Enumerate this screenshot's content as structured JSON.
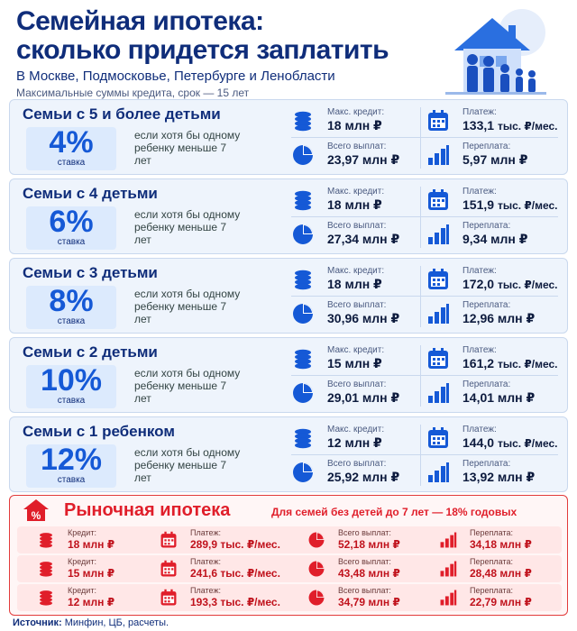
{
  "header": {
    "title_line1": "Семейная ипотека:",
    "title_line2": "сколько придется заплатить",
    "subtitle": "В Москве, Подмосковье, Петербурге и Ленобласти",
    "note": "Максимальные суммы кредита, срок — 15 лет"
  },
  "labels": {
    "rate": "ставка",
    "condition": "если хотя бы одному ребенку меньше 7 лет",
    "max_credit": "Макс. кредит:",
    "payment": "Платеж:",
    "total": "Всего выплат:",
    "overpay": "Переплата:"
  },
  "cards": [
    {
      "title": "Семьи с 5 и более детьми",
      "rate": "4%",
      "credit": "18 млн ₽",
      "payment": "133,1",
      "total": "23,97 млн ₽",
      "overpay": "5,97 млн ₽"
    },
    {
      "title": "Семьи с 4 детьми",
      "rate": "6%",
      "credit": "18 млн ₽",
      "payment": "151,9",
      "total": "27,34 млн ₽",
      "overpay": "9,34 млн ₽"
    },
    {
      "title": "Семьи с 3 детьми",
      "rate": "8%",
      "credit": "18 млн ₽",
      "payment": "172,0",
      "total": "30,96 млн ₽",
      "overpay": "12,96 млн ₽"
    },
    {
      "title": "Семьи с 2 детьми",
      "rate": "10%",
      "credit": "15 млн ₽",
      "payment": "161,2",
      "total": "29,01 млн ₽",
      "overpay": "14,01 млн ₽"
    },
    {
      "title": "Семьи с 1 ребенком",
      "rate": "12%",
      "credit": "12 млн ₽",
      "payment": "144,0",
      "total": "25,92 млн ₽",
      "overpay": "13,92 млн ₽"
    }
  ],
  "payment_unit": "тыс. ₽/мес.",
  "market": {
    "title": "Рыночная ипотека",
    "note": "Для семей без детей до 7 лет — 18% годовых",
    "labels": {
      "credit": "Кредит:",
      "payment": "Платеж:",
      "total": "Всего выплат:",
      "overpay": "Переплата:"
    },
    "rows": [
      {
        "credit": "18 млн ₽",
        "payment": "289,9 тыс. ₽/мес.",
        "total": "52,18 млн ₽",
        "overpay": "34,18 млн ₽"
      },
      {
        "credit": "15 млн ₽",
        "payment": "241,6 тыс. ₽/мес.",
        "total": "43,48 млн ₽",
        "overpay": "28,48 млн ₽"
      },
      {
        "credit": "12 млн ₽",
        "payment": "193,3 тыс. ₽/мес.",
        "total": "34,79 млн ₽",
        "overpay": "22,79 млн ₽"
      }
    ]
  },
  "source": {
    "label": "Источник:",
    "text": "Минфин, ЦБ, расчеты."
  },
  "colors": {
    "primary": "#1559d6",
    "dark": "#0f2d7a",
    "red": "#e01e2a",
    "card_bg": "#eef4fc"
  }
}
